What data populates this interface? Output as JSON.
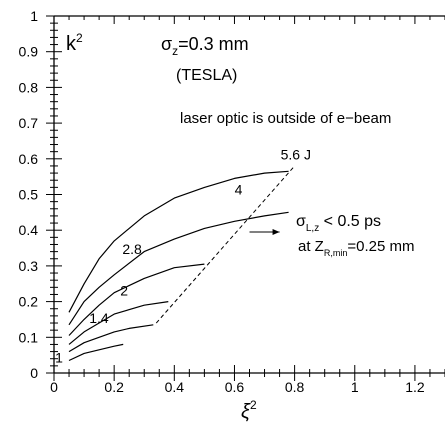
{
  "chart_data": {
    "type": "line",
    "xlabel": "ξ",
    "xlabel_sup": "2",
    "ylabel": "",
    "xlim": [
      0,
      1.3
    ],
    "ylim": [
      0,
      1
    ],
    "x_ticks": [
      0,
      0.2,
      0.4,
      0.6,
      0.8,
      1,
      1.2
    ],
    "x_tick_labels": [
      "0",
      "0.2",
      "0.4",
      "0.6",
      "0.8",
      "1",
      "1.2"
    ],
    "y_ticks": [
      0,
      0.1,
      0.2,
      0.3,
      0.4,
      0.5,
      0.6,
      0.7,
      0.8,
      0.9,
      1
    ],
    "y_tick_labels": [
      "0",
      "0.1",
      "0.2",
      "0.3",
      "0.4",
      "0.5",
      "0.6",
      "0.7",
      "0.8",
      "0.9",
      "1"
    ],
    "grid": false,
    "annotations": {
      "k2": "k",
      "k2_sup": "2",
      "sigma_z": "σ",
      "sigma_z_sub": "z",
      "sigma_z_val": "=0.3 mm",
      "tesla": "(TESLA)",
      "laser_note": "laser optic is outside of e−beam",
      "sigma_L": "σ",
      "sigma_L_sub": "L,z",
      "sigma_L_val": " < 0.5 ps",
      "zr_prefix": "at Z",
      "zr_sub": "R,min",
      "zr_val": "=0.25 mm"
    },
    "series": [
      {
        "label": "5.6 J",
        "x": [
          0.05,
          0.1,
          0.15,
          0.2,
          0.3,
          0.4,
          0.5,
          0.6,
          0.7,
          0.78
        ],
        "y": [
          0.17,
          0.25,
          0.32,
          0.37,
          0.44,
          0.49,
          0.52,
          0.545,
          0.56,
          0.565
        ]
      },
      {
        "label": "4",
        "x": [
          0.05,
          0.1,
          0.15,
          0.2,
          0.3,
          0.4,
          0.5,
          0.6,
          0.7,
          0.78
        ],
        "y": [
          0.135,
          0.2,
          0.24,
          0.275,
          0.34,
          0.375,
          0.405,
          0.425,
          0.44,
          0.45
        ]
      },
      {
        "label": "2.8",
        "x": [
          0.05,
          0.1,
          0.15,
          0.2,
          0.3,
          0.4,
          0.5
        ],
        "y": [
          0.105,
          0.15,
          0.19,
          0.225,
          0.265,
          0.295,
          0.305
        ]
      },
      {
        "label": "2",
        "x": [
          0.05,
          0.1,
          0.15,
          0.2,
          0.3,
          0.38
        ],
        "y": [
          0.08,
          0.115,
          0.14,
          0.165,
          0.19,
          0.2
        ]
      },
      {
        "label": "1.4",
        "x": [
          0.05,
          0.1,
          0.15,
          0.2,
          0.25,
          0.33
        ],
        "y": [
          0.06,
          0.085,
          0.1,
          0.115,
          0.125,
          0.135
        ]
      },
      {
        "label": "1",
        "x": [
          0.05,
          0.1,
          0.15,
          0.2,
          0.23
        ],
        "y": [
          0.035,
          0.055,
          0.065,
          0.075,
          0.08
        ]
      }
    ],
    "boundary_line": {
      "x": [
        0.34,
        0.8
      ],
      "y": [
        0.14,
        0.58
      ],
      "style": "dashed"
    },
    "arrow": {
      "x": [
        0.65,
        0.75
      ],
      "y": [
        0.395,
        0.395
      ]
    }
  }
}
